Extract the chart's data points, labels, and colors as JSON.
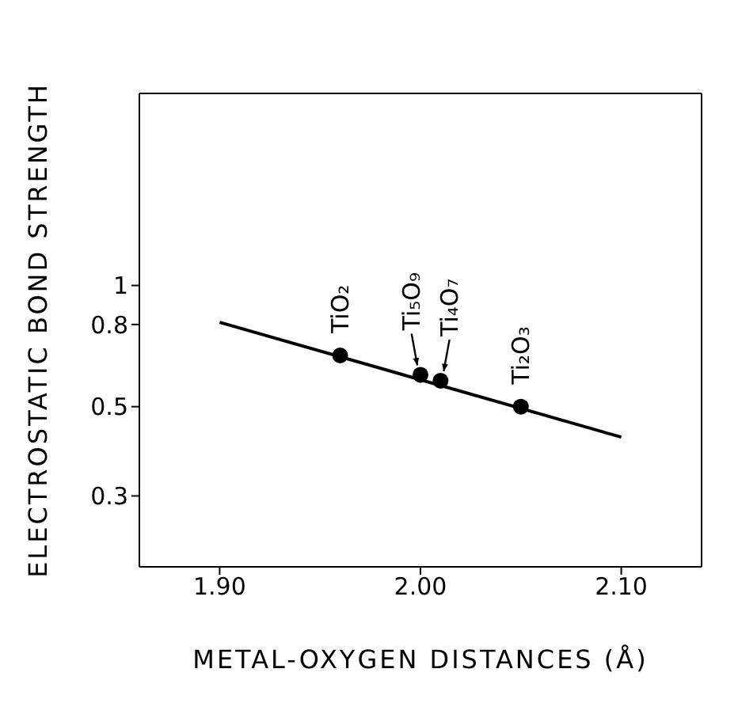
{
  "chart_data": {
    "type": "scatter",
    "xlabel": "METAL-OXYGEN DISTANCES (Å)",
    "ylabel": "ELECTROSTATIC BOND STRENGTH",
    "log": "y",
    "xlim": [
      1.86,
      2.14
    ],
    "ylim": [
      0.2,
      3
    ],
    "xticks": [
      {
        "value": 1.9,
        "label": "1.90"
      },
      {
        "value": 2,
        "label": "2.00"
      },
      {
        "value": 2.1,
        "label": "2.10"
      }
    ],
    "yticks": [
      0.3,
      0.5,
      0.8,
      1
    ],
    "series": [
      {
        "color": "#000000",
        "marker": "circle",
        "x": [
          1.96,
          2.0,
          2.01,
          2.05
        ],
        "values": [
          0.67,
          0.6,
          0.58,
          0.5
        ]
      },
      {
        "type": "line",
        "color": "#000000",
        "marker": "none",
        "line_style": "solid",
        "x": [
          1.9,
          2.1
        ],
        "values": [
          0.81,
          0.42
        ]
      }
    ],
    "annotations": [
      {
        "text": "TiO₂",
        "x": 1.96,
        "y": 0.67
      },
      {
        "text": "Ti₅O₉",
        "x": 2.0,
        "y": 0.6
      },
      {
        "text": "Ti₄O₇",
        "x": 2.01,
        "y": 0.58
      },
      {
        "text": "Ti₂O₃",
        "x": 2.05,
        "y": 0.5
      }
    ]
  }
}
